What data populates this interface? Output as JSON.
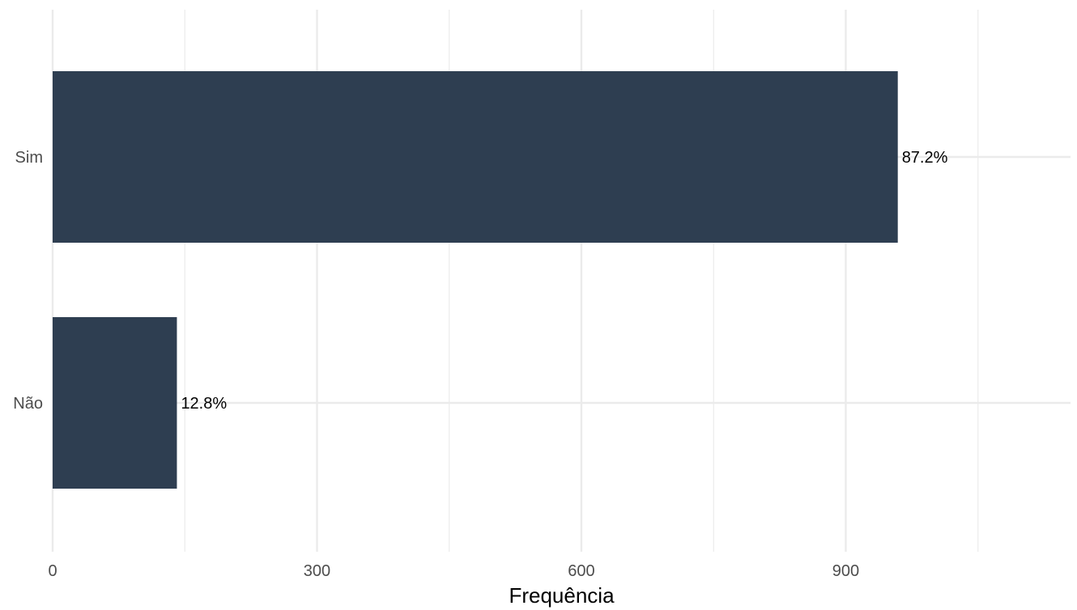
{
  "chart_data": {
    "type": "bar",
    "orientation": "horizontal",
    "categories": [
      "Sim",
      "Não"
    ],
    "values": [
      959,
      141
    ],
    "data_labels": [
      "87.2%",
      "12.8%"
    ],
    "xlabel": "Frequência",
    "ylabel": "",
    "title": "",
    "xlim": [
      0,
      1155
    ],
    "x_ticks": [
      0,
      300,
      600,
      900
    ],
    "x_tick_labels": [
      "0",
      "300",
      "600",
      "900"
    ],
    "x_minor_ticks": [
      150,
      450,
      750,
      1050
    ],
    "grid": true,
    "legend": "none",
    "bar_color": "#2E3E51",
    "grid_color": "#EBEBEB"
  }
}
